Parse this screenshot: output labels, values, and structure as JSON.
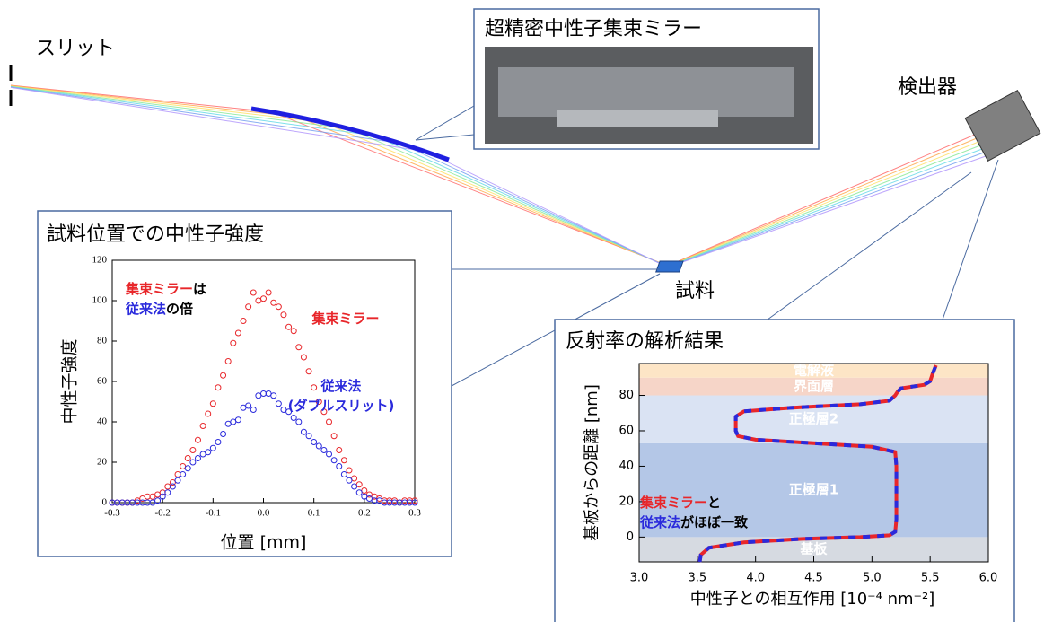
{
  "labels": {
    "slit": "スリット",
    "detector": "検出器",
    "sample": "試料"
  },
  "photo_caption": "超精密中性子集束ミラー",
  "panels": [
    {
      "title": "試料位置での中性子強度"
    },
    {
      "title": "反射率の解析結果"
    }
  ],
  "chart_data": [
    {
      "type": "scatter",
      "x_label": "位置 [mm]",
      "y_label": "中性子強度",
      "xlim": [
        -0.3,
        0.3
      ],
      "ylim": [
        0,
        120
      ],
      "xticks": [
        -0.3,
        -0.2,
        -0.1,
        {
          "value": 0,
          "label": "0.0"
        },
        0.1,
        0.2,
        0.3
      ],
      "yticks": [
        0,
        20,
        40,
        60,
        80,
        100,
        120
      ],
      "x": [
        -0.3,
        -0.29,
        -0.28,
        -0.27,
        -0.26,
        -0.25,
        -0.24,
        -0.23,
        -0.22,
        -0.21,
        -0.2,
        -0.19,
        -0.18,
        -0.17,
        -0.16,
        -0.15,
        -0.14,
        -0.13,
        -0.12,
        -0.11,
        -0.1,
        -0.09,
        -0.08,
        -0.07,
        -0.06,
        -0.05,
        -0.04,
        -0.03,
        -0.02,
        -0.01,
        0,
        0.01,
        0.02,
        0.03,
        0.04,
        0.05,
        0.06,
        0.07,
        0.08,
        0.09,
        0.1,
        0.11,
        0.12,
        0.13,
        0.14,
        0.15,
        0.16,
        0.17,
        0.18,
        0.19,
        0.2,
        0.21,
        0.22,
        0.23,
        0.24,
        0.25,
        0.26,
        0.27,
        0.28,
        0.29,
        0.3
      ],
      "series": [
        {
          "color": "#e8262a",
          "values": [
            0,
            0,
            0,
            0,
            0,
            1,
            2,
            3,
            3,
            4,
            5,
            8,
            10,
            14,
            18,
            22,
            26,
            31,
            38,
            44,
            49,
            57,
            63,
            70,
            79,
            84,
            90,
            97,
            104,
            100,
            101,
            104,
            99,
            97,
            93,
            87,
            85,
            77,
            72,
            65,
            57,
            50,
            45,
            40,
            33,
            26,
            21,
            16,
            12,
            9,
            6,
            4,
            3,
            2,
            1,
            1,
            1,
            0,
            1,
            1,
            1
          ]
        },
        {
          "color": "#2a2adc",
          "values": [
            0,
            0,
            0,
            0,
            0,
            0,
            0,
            0,
            0,
            1,
            3,
            5,
            8,
            11,
            14,
            17,
            20,
            22,
            24,
            25,
            27,
            30,
            34,
            39,
            40,
            41,
            47,
            48,
            46,
            53,
            54,
            54,
            53,
            49,
            46,
            45,
            42,
            40,
            35,
            33,
            30,
            28,
            26,
            24,
            21,
            18,
            14,
            11,
            8,
            5,
            3,
            2,
            1,
            1,
            0,
            0,
            0,
            0,
            0,
            0,
            0
          ]
        }
      ],
      "annotations": [
        {
          "lines": [
            [
              {
                "text": "集束ミラー",
                "color": "#e8262a"
              },
              {
                "text": "は",
                "color": "#000000"
              }
            ],
            [
              {
                "text": "従来法",
                "color": "#2a2adc"
              },
              {
                "text": "の倍",
                "color": "#000000"
              }
            ]
          ]
        },
        {
          "lines": [
            [
              {
                "text": "集束ミラー",
                "color": "#e8262a"
              }
            ]
          ]
        },
        {
          "lines": [
            [
              {
                "text": "従来法",
                "color": "#2a2adc"
              }
            ],
            [
              {
                "text": "(ダブルスリット)",
                "color": "#2a2adc"
              }
            ]
          ]
        }
      ]
    },
    {
      "type": "line",
      "x_label": "中性子との相互作用 [10⁻⁴ nm⁻²]",
      "y_label": "基板からの距離 [nm]",
      "xlim": [
        3.0,
        6.0
      ],
      "ylim": [
        -14,
        98
      ],
      "xticks": [
        {
          "value": 3,
          "label": "3.0"
        },
        3.5,
        {
          "value": 4,
          "label": "4.0"
        },
        4.5,
        {
          "value": 5,
          "label": "5.0"
        },
        5.5,
        {
          "value": 6,
          "label": "6.0"
        }
      ],
      "yticks": [
        0,
        20,
        40,
        60,
        80
      ],
      "layers": [
        {
          "name": "基板",
          "from": -14,
          "to": 0,
          "color": "#d6dae1"
        },
        {
          "name": "正極層1",
          "from": 0,
          "to": 53,
          "color": "#b4c7e7"
        },
        {
          "name": "正極層2",
          "from": 53,
          "to": 80,
          "color": "#dae3f3"
        },
        {
          "name": "界面層",
          "from": 80,
          "to": 90,
          "color": "#f6d5c8"
        },
        {
          "name": "電解液",
          "from": 90,
          "to": 98,
          "color": "#fde5c6"
        }
      ],
      "y": [
        -14,
        -10,
        -6,
        -3,
        -1,
        0,
        1,
        3,
        10,
        40,
        48,
        51,
        53,
        55,
        57,
        60,
        68,
        71,
        73,
        75,
        77,
        80,
        82,
        84,
        86,
        88,
        92,
        97
      ],
      "series": [
        {
          "color": "#e8262a",
          "values": [
            3.52,
            3.53,
            3.6,
            3.9,
            4.4,
            4.9,
            5.15,
            5.2,
            5.21,
            5.21,
            5.2,
            5.0,
            4.5,
            4.0,
            3.85,
            3.83,
            3.83,
            3.9,
            4.3,
            4.9,
            5.15,
            5.2,
            5.22,
            5.25,
            5.45,
            5.5,
            5.52,
            5.55
          ]
        },
        {
          "color": "#2a2adc",
          "values": [
            3.52,
            3.53,
            3.6,
            3.9,
            4.4,
            4.9,
            5.15,
            5.2,
            5.21,
            5.21,
            5.2,
            5.0,
            4.5,
            4.0,
            3.85,
            3.83,
            3.83,
            3.9,
            4.3,
            4.9,
            5.15,
            5.2,
            5.22,
            5.25,
            5.45,
            5.5,
            5.52,
            5.55
          ]
        }
      ],
      "annotations": [
        {
          "lines": [
            [
              {
                "text": "集束ミラー",
                "color": "#e8262a"
              },
              {
                "text": "と",
                "color": "#000000"
              }
            ],
            [
              {
                "text": "従来法",
                "color": "#2a2adc"
              },
              {
                "text": "がほぼ一致",
                "color": "#000000"
              }
            ]
          ]
        }
      ]
    }
  ]
}
